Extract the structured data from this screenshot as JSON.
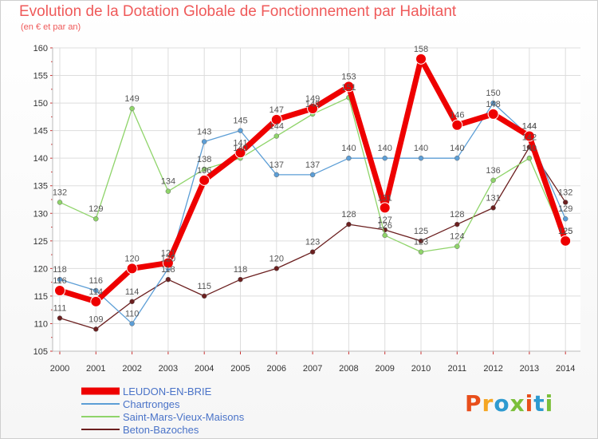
{
  "title": "Evolution de la Dotation Globale de Fonctionnement par Habitant",
  "subtitle": "(en € et par an)",
  "logo": {
    "text": "Proxiti",
    "colors": [
      "#e84e1b",
      "#f5a623",
      "#2e9ad0",
      "#7bbf3a",
      "#e84e1b",
      "#2e9ad0",
      "#7bbf3a"
    ]
  },
  "chart_data": {
    "type": "line",
    "x": [
      "2000",
      "2001",
      "2002",
      "2003",
      "2004",
      "2005",
      "2006",
      "2007",
      "2008",
      "2009",
      "2010",
      "2011",
      "2012",
      "2013",
      "2014"
    ],
    "ylim": [
      105,
      160
    ],
    "yticks": [
      105,
      110,
      115,
      120,
      125,
      130,
      135,
      140,
      145,
      150,
      155,
      160
    ],
    "grid": true,
    "legend_position": "bottom-left",
    "series": [
      {
        "name": "Beton-Bazoches",
        "color": "#6b1f1f",
        "values": [
          111,
          109,
          114,
          118,
          115,
          118,
          120,
          123,
          128,
          127,
          125,
          128,
          131,
          142,
          132
        ]
      },
      {
        "name": "Saint-Mars-Vieux-Maisons",
        "color": "#8fd46a",
        "values": [
          132,
          129,
          149,
          134,
          138,
          140,
          144,
          148,
          151,
          126,
          123,
          124,
          136,
          140,
          125
        ]
      },
      {
        "name": "Chartronges",
        "color": "#5c9ed6",
        "values": [
          118,
          116,
          110,
          120,
          143,
          145,
          137,
          137,
          140,
          140,
          140,
          140,
          150,
          144,
          129
        ]
      },
      {
        "name": "LEUDON-EN-BRIE",
        "color": "#ee0000",
        "values": [
          116,
          114,
          120,
          121,
          136,
          141,
          147,
          149,
          153,
          131,
          158,
          146,
          148,
          144,
          125
        ]
      }
    ],
    "legend_order": [
      "LEUDON-EN-BRIE",
      "Chartronges",
      "Saint-Mars-Vieux-Maisons",
      "Beton-Bazoches"
    ]
  }
}
